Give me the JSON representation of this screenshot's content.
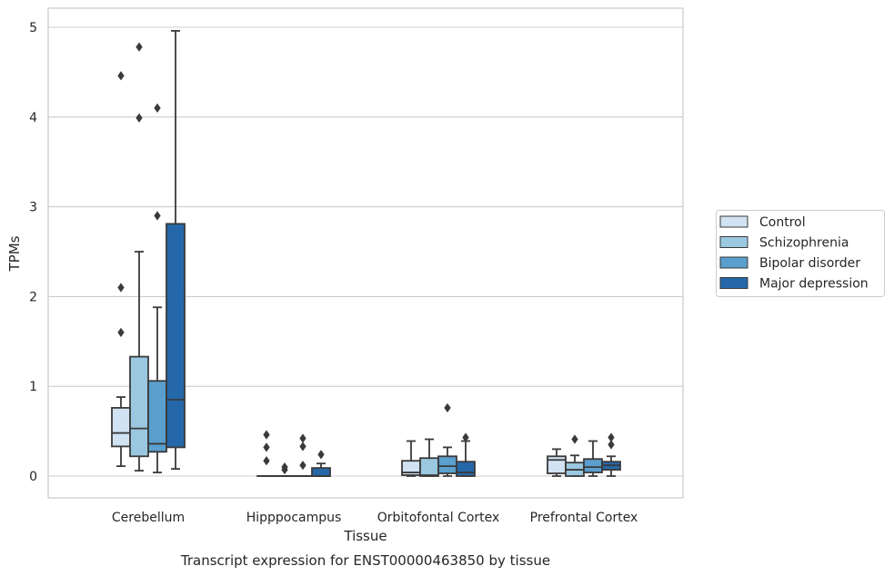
{
  "chart_data": {
    "type": "box",
    "caption": "Transcript expression for ENST00000463850 by tissue",
    "xlabel": "Tissue",
    "ylabel": "TPMs",
    "ylim": [
      -0.24,
      5.22
    ],
    "yticks": [
      0,
      1,
      2,
      3,
      4,
      5
    ],
    "grid": "y",
    "legend_placement": "right",
    "categories": [
      "Cerebellum",
      "Hipppocampus",
      "Orbitofontal Cortex",
      "Prefrontal Cortex"
    ],
    "series": [
      {
        "name": "Control",
        "color": "#d1e2f2",
        "boxes": [
          {
            "whislo": 0.11,
            "q1": 0.33,
            "med": 0.48,
            "q3": 0.76,
            "whishi": 0.88,
            "fliers": [
              1.6,
              2.1,
              4.46
            ]
          },
          {
            "whislo": 0.0,
            "q1": 0.0,
            "med": 0.0,
            "q3": 0.0,
            "whishi": 0.0,
            "fliers": [
              0.17,
              0.32,
              0.46
            ]
          },
          {
            "whislo": 0.0,
            "q1": 0.01,
            "med": 0.04,
            "q3": 0.17,
            "whishi": 0.39,
            "fliers": []
          },
          {
            "whislo": 0.0,
            "q1": 0.03,
            "med": 0.18,
            "q3": 0.22,
            "whishi": 0.3,
            "fliers": []
          }
        ]
      },
      {
        "name": "Schizophrenia",
        "color": "#9ac8e0",
        "boxes": [
          {
            "whislo": 0.06,
            "q1": 0.22,
            "med": 0.53,
            "q3": 1.33,
            "whishi": 2.5,
            "fliers": [
              3.99,
              4.78
            ]
          },
          {
            "whislo": 0.0,
            "q1": 0.0,
            "med": 0.0,
            "q3": 0.0,
            "whishi": 0.0,
            "fliers": [
              0.07,
              0.1
            ]
          },
          {
            "whislo": 0.0,
            "q1": 0.0,
            "med": 0.01,
            "q3": 0.2,
            "whishi": 0.41,
            "fliers": []
          },
          {
            "whislo": 0.0,
            "q1": 0.0,
            "med": 0.07,
            "q3": 0.15,
            "whishi": 0.23,
            "fliers": [
              0.41
            ]
          }
        ]
      },
      {
        "name": "Bipolar disorder",
        "color": "#5a9fcd",
        "boxes": [
          {
            "whislo": 0.04,
            "q1": 0.27,
            "med": 0.36,
            "q3": 1.06,
            "whishi": 1.88,
            "fliers": [
              2.9,
              4.1
            ]
          },
          {
            "whislo": 0.0,
            "q1": 0.0,
            "med": 0.0,
            "q3": 0.0,
            "whishi": 0.0,
            "fliers": [
              0.12,
              0.33,
              0.42
            ]
          },
          {
            "whislo": 0.0,
            "q1": 0.03,
            "med": 0.11,
            "q3": 0.22,
            "whishi": 0.32,
            "fliers": [
              0.76
            ]
          },
          {
            "whislo": 0.0,
            "q1": 0.04,
            "med": 0.1,
            "q3": 0.19,
            "whishi": 0.39,
            "fliers": []
          }
        ]
      },
      {
        "name": "Major depression",
        "color": "#2468a9",
        "boxes": [
          {
            "whislo": 0.08,
            "q1": 0.32,
            "med": 0.85,
            "q3": 2.81,
            "whishi": 4.96,
            "fliers": []
          },
          {
            "whislo": 0.0,
            "q1": 0.0,
            "med": 0.0,
            "q3": 0.09,
            "whishi": 0.14,
            "fliers": [
              0.24
            ]
          },
          {
            "whislo": 0.0,
            "q1": 0.0,
            "med": 0.04,
            "q3": 0.16,
            "whishi": 0.39,
            "fliers": [
              0.43
            ]
          },
          {
            "whislo": 0.0,
            "q1": 0.07,
            "med": 0.12,
            "q3": 0.16,
            "whishi": 0.22,
            "fliers": [
              0.35,
              0.43
            ]
          }
        ]
      }
    ]
  }
}
